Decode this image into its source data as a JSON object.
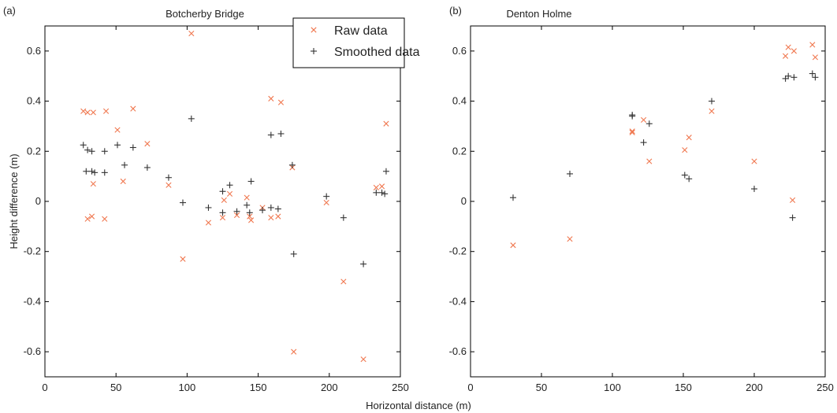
{
  "xlabel": "Horizontal distance (m)",
  "ylabel": "Height difference (m)",
  "colors": {
    "raw": "#f07850",
    "smoothed": "#333333",
    "axis": "#000000"
  },
  "legend": {
    "entries": [
      "Raw data",
      "Smoothed data"
    ],
    "placement": "top-center"
  },
  "chart_data": [
    {
      "type": "scatter",
      "panel_label": "(a)",
      "title": "Botcherby Bridge",
      "xlim": [
        0,
        250
      ],
      "ylim": [
        -0.7,
        0.7
      ],
      "xticks": [
        0,
        50,
        100,
        150,
        200,
        250
      ],
      "yticks": [
        -0.6,
        -0.4,
        -0.2,
        0,
        0.2,
        0.4,
        0.6
      ],
      "series": [
        {
          "name": "Raw data",
          "marker": "x",
          "points": [
            [
              27,
              0.36
            ],
            [
              30,
              0.355
            ],
            [
              34,
              0.355
            ],
            [
              43,
              0.36
            ],
            [
              30,
              -0.07
            ],
            [
              33,
              -0.06
            ],
            [
              42,
              -0.07
            ],
            [
              34,
              0.07
            ],
            [
              51,
              0.285
            ],
            [
              55,
              0.08
            ],
            [
              62,
              0.37
            ],
            [
              72,
              0.23
            ],
            [
              87,
              0.065
            ],
            [
              97,
              -0.23
            ],
            [
              103,
              0.67
            ],
            [
              115,
              -0.085
            ],
            [
              125,
              -0.065
            ],
            [
              126,
              0.005
            ],
            [
              130,
              0.03
            ],
            [
              135,
              -0.055
            ],
            [
              142,
              0.015
            ],
            [
              144,
              -0.06
            ],
            [
              145,
              -0.075
            ],
            [
              153,
              -0.025
            ],
            [
              159,
              0.41
            ],
            [
              159,
              -0.065
            ],
            [
              164,
              -0.06
            ],
            [
              166,
              0.395
            ],
            [
              174,
              0.135
            ],
            [
              175,
              -0.6
            ],
            [
              198,
              -0.005
            ],
            [
              210,
              -0.32
            ],
            [
              224,
              -0.63
            ],
            [
              233,
              0.055
            ],
            [
              237,
              0.06
            ],
            [
              240,
              0.31
            ]
          ]
        },
        {
          "name": "Smoothed data",
          "marker": "+",
          "points": [
            [
              27,
              0.225
            ],
            [
              30,
              0.205
            ],
            [
              33,
              0.2
            ],
            [
              42,
              0.2
            ],
            [
              51,
              0.225
            ],
            [
              62,
              0.215
            ],
            [
              29,
              0.12
            ],
            [
              33,
              0.12
            ],
            [
              35,
              0.115
            ],
            [
              42,
              0.115
            ],
            [
              56,
              0.145
            ],
            [
              72,
              0.135
            ],
            [
              87,
              0.095
            ],
            [
              97,
              -0.005
            ],
            [
              103,
              0.33
            ],
            [
              115,
              -0.025
            ],
            [
              125,
              0.04
            ],
            [
              125,
              -0.045
            ],
            [
              130,
              0.065
            ],
            [
              135,
              -0.04
            ],
            [
              142,
              -0.015
            ],
            [
              144,
              -0.045
            ],
            [
              145,
              0.08
            ],
            [
              153,
              -0.035
            ],
            [
              159,
              0.265
            ],
            [
              159,
              -0.025
            ],
            [
              164,
              -0.03
            ],
            [
              166,
              0.27
            ],
            [
              174,
              0.145
            ],
            [
              175,
              -0.21
            ],
            [
              198,
              0.02
            ],
            [
              210,
              -0.065
            ],
            [
              224,
              -0.25
            ],
            [
              233,
              0.035
            ],
            [
              237,
              0.035
            ],
            [
              239,
              0.03
            ],
            [
              240,
              0.12
            ]
          ]
        }
      ]
    },
    {
      "type": "scatter",
      "panel_label": "(b)",
      "title": "Denton Holme",
      "xlim": [
        0,
        250
      ],
      "ylim": [
        -0.7,
        0.7
      ],
      "xticks": [
        0,
        50,
        100,
        150,
        200,
        250
      ],
      "yticks": [
        -0.6,
        -0.4,
        -0.2,
        0,
        0.2,
        0.4,
        0.6
      ],
      "series": [
        {
          "name": "Raw data",
          "marker": "x",
          "points": [
            [
              30,
              -0.175
            ],
            [
              70,
              -0.15
            ],
            [
              114,
              0.28
            ],
            [
              114,
              0.275
            ],
            [
              122,
              0.325
            ],
            [
              126,
              0.16
            ],
            [
              151,
              0.205
            ],
            [
              154,
              0.255
            ],
            [
              170,
              0.36
            ],
            [
              200,
              0.16
            ],
            [
              222,
              0.58
            ],
            [
              224,
              0.615
            ],
            [
              227,
              0.005
            ],
            [
              228,
              0.6
            ],
            [
              241,
              0.625
            ],
            [
              243,
              0.575
            ]
          ]
        },
        {
          "name": "Smoothed data",
          "marker": "+",
          "points": [
            [
              30,
              0.015
            ],
            [
              70,
              0.11
            ],
            [
              114,
              0.345
            ],
            [
              114,
              0.34
            ],
            [
              122,
              0.235
            ],
            [
              126,
              0.31
            ],
            [
              151,
              0.105
            ],
            [
              154,
              0.09
            ],
            [
              170,
              0.4
            ],
            [
              200,
              0.05
            ],
            [
              222,
              0.49
            ],
            [
              224,
              0.5
            ],
            [
              227,
              -0.065
            ],
            [
              228,
              0.495
            ],
            [
              241,
              0.51
            ],
            [
              243,
              0.495
            ]
          ]
        }
      ]
    }
  ]
}
